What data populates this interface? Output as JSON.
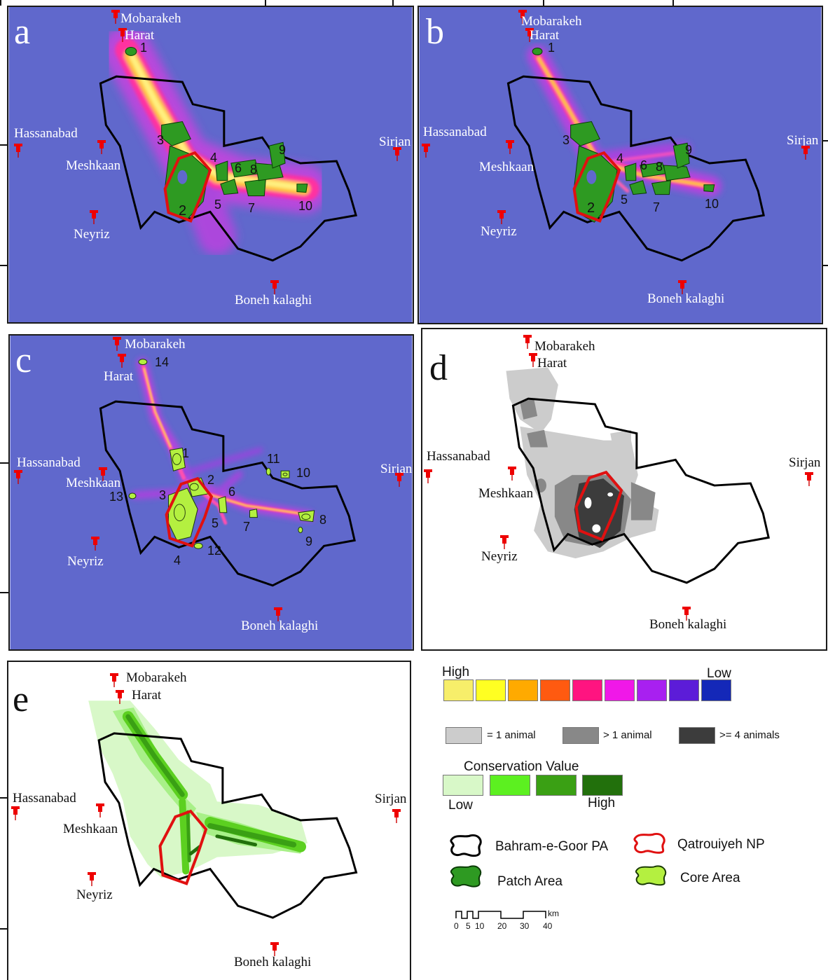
{
  "panels": {
    "a": {
      "label": "a",
      "patch_numbers": [
        "1",
        "2",
        "3",
        "4",
        "5",
        "6",
        "7",
        "8",
        "9",
        "10"
      ]
    },
    "b": {
      "label": "b",
      "patch_numbers": [
        "1",
        "2",
        "3",
        "4",
        "5",
        "6",
        "7",
        "8",
        "9",
        "10"
      ]
    },
    "c": {
      "label": "c",
      "core_numbers": [
        "1",
        "2",
        "3",
        "4",
        "5",
        "6",
        "7",
        "8",
        "9",
        "10",
        "11",
        "12",
        "13",
        "14"
      ]
    },
    "d": {
      "label": "d"
    },
    "e": {
      "label": "e"
    }
  },
  "towns": {
    "mobarakeh": "Mobarakeh",
    "harat": "Harat",
    "hassanabad": "Hassanabad",
    "meshkaan": "Meshkaan",
    "neyriz": "Neyriz",
    "sirjan": "Sirjan",
    "boneh_kalaghi": "Boneh kalaghi"
  },
  "legend": {
    "density_high": "High",
    "density_low": "Low",
    "density_colors": [
      "#f7ee6a",
      "#ffff22",
      "#ffaa00",
      "#ff5a10",
      "#ff1480",
      "#f018e8",
      "#a820f0",
      "#5c1cd8",
      "#1428b8"
    ],
    "animals": [
      {
        "label": "= 1 animal",
        "color": "#cccccc"
      },
      {
        "label": "> 1 animal",
        "color": "#888888"
      },
      {
        "label": ">= 4 animals",
        "color": "#3c3c3c"
      }
    ],
    "conservation_title": "Conservation Value",
    "conservation_low": "Low",
    "conservation_high": "High",
    "conservation_colors": [
      "#d8f8c8",
      "#5cf020",
      "#3aa014",
      "#22700c"
    ],
    "pa_label": "Bahram-e-Goor PA",
    "np_label": "Qatrouiyeh NP",
    "patch_label": "Patch Area",
    "core_label": "Core Area",
    "scale_unit": "km",
    "scale_ticks": [
      "0",
      "5",
      "10",
      "20",
      "30",
      "40"
    ]
  }
}
